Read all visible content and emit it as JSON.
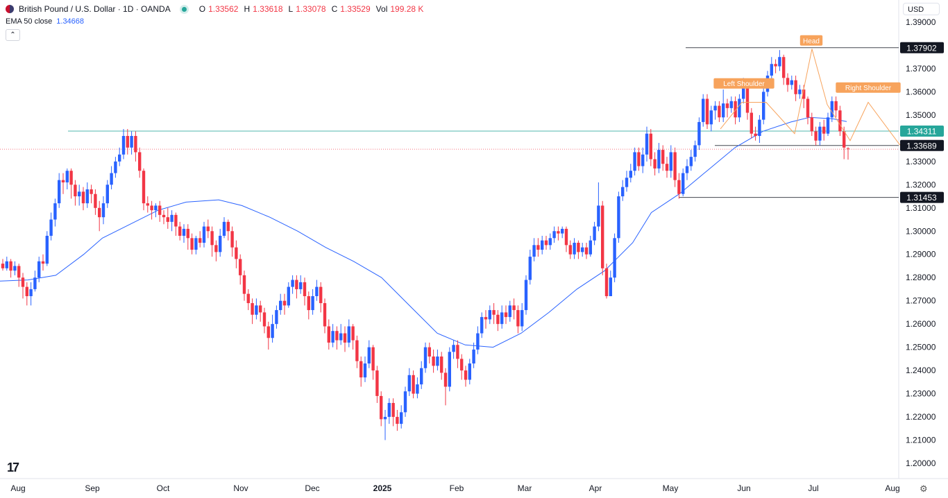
{
  "header": {
    "symbol": "British Pound / U.S. Dollar · 1D · OANDA",
    "open_label": "O",
    "open": "1.33562",
    "high_label": "H",
    "high": "1.33618",
    "low_label": "L",
    "low": "1.33078",
    "close_label": "C",
    "close": "1.33529",
    "vol_label": "Vol",
    "vol": "199.28 K"
  },
  "indicator": {
    "label": "EMA 50 close",
    "value": "1.34668",
    "color": "#2962ff"
  },
  "currency": "USD",
  "colors": {
    "up": "#2962ff",
    "down": "#f23645",
    "ema": "#2962ff",
    "support": "#26a69a",
    "pattern": "#f7a35c",
    "level": "#131722"
  },
  "chart_data": {
    "type": "candlestick",
    "y_range": [
      1.195,
      1.393
    ],
    "y_ticks": [
      "1.39000",
      "1.37000",
      "1.36000",
      "1.35000",
      "1.33000",
      "1.32000",
      "1.31000",
      "1.30000",
      "1.29000",
      "1.28000",
      "1.27000",
      "1.26000",
      "1.25000",
      "1.24000",
      "1.23000",
      "1.22000",
      "1.21000",
      "1.20000"
    ],
    "x_labels": [
      "Aug",
      "Sep",
      "Oct",
      "Nov",
      "Dec",
      "2025",
      "Feb",
      "Mar",
      "Apr",
      "May",
      "Jun",
      "Jul",
      "Aug"
    ],
    "price_tags": [
      {
        "label": "1.37902",
        "style": "level"
      },
      {
        "label": "1.34311",
        "style": "support"
      },
      {
        "label": "1.33689",
        "style": "level"
      },
      {
        "label": "1.31453",
        "style": "level"
      }
    ],
    "annotations": [
      "Left Shoulder",
      "Head",
      "Right Shoulder"
    ],
    "ema_label": "EMA 50 close",
    "ema_points": [
      [
        0,
        1.2785
      ],
      [
        0.03,
        1.279
      ],
      [
        0.06,
        1.281
      ],
      [
        0.09,
        1.29
      ],
      [
        0.11,
        1.297
      ],
      [
        0.14,
        1.303
      ],
      [
        0.17,
        1.309
      ],
      [
        0.2,
        1.3125
      ],
      [
        0.235,
        1.3135
      ],
      [
        0.26,
        1.311
      ],
      [
        0.29,
        1.306
      ],
      [
        0.32,
        1.3
      ],
      [
        0.35,
        1.293
      ],
      [
        0.38,
        1.287
      ],
      [
        0.41,
        1.28
      ],
      [
        0.44,
        1.268
      ],
      [
        0.47,
        1.256
      ],
      [
        0.5,
        1.251
      ],
      [
        0.53,
        1.25
      ],
      [
        0.56,
        1.256
      ],
      [
        0.59,
        1.265
      ],
      [
        0.62,
        1.275
      ],
      [
        0.65,
        1.283
      ],
      [
        0.68,
        1.295
      ],
      [
        0.7,
        1.308
      ],
      [
        0.73,
        1.316
      ],
      [
        0.76,
        1.326
      ],
      [
        0.79,
        1.336
      ],
      [
        0.82,
        1.343
      ],
      [
        0.85,
        1.347
      ],
      [
        0.87,
        1.349
      ],
      [
        0.895,
        1.3484
      ],
      [
        0.91,
        1.3472
      ]
    ],
    "candles": [
      [
        1.286,
        1.284,
        1.288,
        1.283
      ],
      [
        1.284,
        1.287,
        1.289,
        1.283
      ],
      [
        1.287,
        1.283,
        1.288,
        1.28
      ],
      [
        1.283,
        1.285,
        1.287,
        1.281
      ],
      [
        1.285,
        1.28,
        1.286,
        1.276
      ],
      [
        1.28,
        1.276,
        1.282,
        1.271
      ],
      [
        1.276,
        1.272,
        1.278,
        1.268
      ],
      [
        1.272,
        1.275,
        1.278,
        1.268
      ],
      [
        1.275,
        1.28,
        1.283,
        1.274
      ],
      [
        1.28,
        1.287,
        1.289,
        1.278
      ],
      [
        1.287,
        1.286,
        1.29,
        1.283
      ],
      [
        1.286,
        1.298,
        1.3,
        1.285
      ],
      [
        1.298,
        1.305,
        1.308,
        1.296
      ],
      [
        1.305,
        1.312,
        1.314,
        1.302
      ],
      [
        1.312,
        1.322,
        1.325,
        1.31
      ],
      [
        1.322,
        1.321,
        1.325,
        1.316
      ],
      [
        1.321,
        1.326,
        1.327,
        1.318
      ],
      [
        1.326,
        1.32,
        1.327,
        1.314
      ],
      [
        1.32,
        1.315,
        1.322,
        1.311
      ],
      [
        1.315,
        1.317,
        1.32,
        1.311
      ],
      [
        1.317,
        1.312,
        1.319,
        1.309
      ],
      [
        1.312,
        1.318,
        1.321,
        1.31
      ],
      [
        1.318,
        1.316,
        1.32,
        1.312
      ],
      [
        1.316,
        1.31,
        1.318,
        1.307
      ],
      [
        1.31,
        1.306,
        1.313,
        1.3
      ],
      [
        1.306,
        1.312,
        1.315,
        1.303
      ],
      [
        1.312,
        1.32,
        1.322,
        1.31
      ],
      [
        1.32,
        1.325,
        1.328,
        1.318
      ],
      [
        1.325,
        1.33,
        1.332,
        1.323
      ],
      [
        1.33,
        1.333,
        1.336,
        1.328
      ],
      [
        1.333,
        1.341,
        1.344,
        1.331
      ],
      [
        1.341,
        1.336,
        1.344,
        1.333
      ],
      [
        1.336,
        1.341,
        1.343,
        1.333
      ],
      [
        1.341,
        1.334,
        1.343,
        1.33
      ],
      [
        1.334,
        1.326,
        1.336,
        1.323
      ],
      [
        1.326,
        1.312,
        1.327,
        1.309
      ],
      [
        1.312,
        1.311,
        1.315,
        1.308
      ],
      [
        1.311,
        1.309,
        1.313,
        1.305
      ],
      [
        1.309,
        1.311,
        1.312,
        1.306
      ],
      [
        1.311,
        1.307,
        1.313,
        1.304
      ],
      [
        1.307,
        1.306,
        1.309,
        1.303
      ],
      [
        1.306,
        1.304,
        1.31,
        1.301
      ],
      [
        1.304,
        1.307,
        1.309,
        1.3
      ],
      [
        1.307,
        1.302,
        1.308,
        1.298
      ],
      [
        1.302,
        1.298,
        1.304,
        1.296
      ],
      [
        1.298,
        1.301,
        1.303,
        1.295
      ],
      [
        1.301,
        1.297,
        1.303,
        1.292
      ],
      [
        1.297,
        1.292,
        1.299,
        1.29
      ],
      [
        1.292,
        1.297,
        1.298,
        1.29
      ],
      [
        1.297,
        1.295,
        1.3,
        1.293
      ],
      [
        1.295,
        1.302,
        1.304,
        1.293
      ],
      [
        1.302,
        1.3,
        1.305,
        1.297
      ],
      [
        1.3,
        1.294,
        1.302,
        1.289
      ],
      [
        1.294,
        1.291,
        1.296,
        1.287
      ],
      [
        1.291,
        1.298,
        1.301,
        1.289
      ],
      [
        1.298,
        1.304,
        1.306,
        1.297
      ],
      [
        1.304,
        1.3,
        1.305,
        1.296
      ],
      [
        1.3,
        1.293,
        1.302,
        1.289
      ],
      [
        1.293,
        1.288,
        1.296,
        1.284
      ],
      [
        1.288,
        1.281,
        1.29,
        1.277
      ],
      [
        1.281,
        1.273,
        1.283,
        1.27
      ],
      [
        1.273,
        1.269,
        1.275,
        1.266
      ],
      [
        1.269,
        1.264,
        1.271,
        1.26
      ],
      [
        1.264,
        1.268,
        1.271,
        1.262
      ],
      [
        1.268,
        1.265,
        1.27,
        1.261
      ],
      [
        1.265,
        1.259,
        1.267,
        1.256
      ],
      [
        1.259,
        1.254,
        1.261,
        1.249
      ],
      [
        1.254,
        1.26,
        1.264,
        1.252
      ],
      [
        1.26,
        1.266,
        1.268,
        1.258
      ],
      [
        1.266,
        1.27,
        1.273,
        1.264
      ],
      [
        1.27,
        1.268,
        1.273,
        1.264
      ],
      [
        1.268,
        1.276,
        1.278,
        1.267
      ],
      [
        1.276,
        1.279,
        1.281,
        1.273
      ],
      [
        1.279,
        1.275,
        1.281,
        1.271
      ],
      [
        1.275,
        1.278,
        1.281,
        1.273
      ],
      [
        1.278,
        1.272,
        1.28,
        1.268
      ],
      [
        1.272,
        1.266,
        1.274,
        1.262
      ],
      [
        1.266,
        1.272,
        1.275,
        1.264
      ],
      [
        1.272,
        1.276,
        1.279,
        1.27
      ],
      [
        1.276,
        1.269,
        1.278,
        1.265
      ],
      [
        1.269,
        1.259,
        1.271,
        1.256
      ],
      [
        1.259,
        1.252,
        1.262,
        1.249
      ],
      [
        1.252,
        1.257,
        1.26,
        1.25
      ],
      [
        1.257,
        1.253,
        1.259,
        1.249
      ],
      [
        1.253,
        1.256,
        1.26,
        1.251
      ],
      [
        1.256,
        1.252,
        1.259,
        1.248
      ],
      [
        1.252,
        1.259,
        1.262,
        1.25
      ],
      [
        1.259,
        1.253,
        1.26,
        1.249
      ],
      [
        1.253,
        1.244,
        1.255,
        1.241
      ],
      [
        1.244,
        1.237,
        1.246,
        1.233
      ],
      [
        1.237,
        1.243,
        1.246,
        1.235
      ],
      [
        1.243,
        1.25,
        1.253,
        1.241
      ],
      [
        1.25,
        1.24,
        1.251,
        1.236
      ],
      [
        1.24,
        1.229,
        1.242,
        1.226
      ],
      [
        1.229,
        1.219,
        1.231,
        1.216
      ],
      [
        1.219,
        1.22,
        1.223,
        1.21
      ],
      [
        1.22,
        1.226,
        1.228,
        1.217
      ],
      [
        1.226,
        1.22,
        1.228,
        1.216
      ],
      [
        1.22,
        1.217,
        1.223,
        1.214
      ],
      [
        1.217,
        1.222,
        1.225,
        1.215
      ],
      [
        1.222,
        1.231,
        1.233,
        1.22
      ],
      [
        1.231,
        1.238,
        1.241,
        1.229
      ],
      [
        1.238,
        1.23,
        1.24,
        1.228
      ],
      [
        1.23,
        1.234,
        1.237,
        1.228
      ],
      [
        1.234,
        1.241,
        1.244,
        1.232
      ],
      [
        1.241,
        1.25,
        1.252,
        1.239
      ],
      [
        1.25,
        1.246,
        1.252,
        1.243
      ],
      [
        1.246,
        1.242,
        1.249,
        1.239
      ],
      [
        1.242,
        1.246,
        1.249,
        1.24
      ],
      [
        1.246,
        1.239,
        1.248,
        1.236
      ],
      [
        1.239,
        1.233,
        1.241,
        1.225
      ],
      [
        1.233,
        1.248,
        1.25,
        1.231
      ],
      [
        1.248,
        1.251,
        1.253,
        1.245
      ],
      [
        1.251,
        1.245,
        1.253,
        1.241
      ],
      [
        1.245,
        1.24,
        1.247,
        1.236
      ],
      [
        1.24,
        1.236,
        1.242,
        1.233
      ],
      [
        1.236,
        1.243,
        1.245,
        1.234
      ],
      [
        1.243,
        1.249,
        1.252,
        1.241
      ],
      [
        1.249,
        1.256,
        1.259,
        1.247
      ],
      [
        1.256,
        1.263,
        1.265,
        1.254
      ],
      [
        1.263,
        1.262,
        1.266,
        1.258
      ],
      [
        1.262,
        1.266,
        1.268,
        1.26
      ],
      [
        1.266,
        1.264,
        1.269,
        1.26
      ],
      [
        1.264,
        1.26,
        1.266,
        1.257
      ],
      [
        1.26,
        1.265,
        1.268,
        1.258
      ],
      [
        1.265,
        1.263,
        1.268,
        1.26
      ],
      [
        1.263,
        1.268,
        1.27,
        1.261
      ],
      [
        1.268,
        1.266,
        1.271,
        1.262
      ],
      [
        1.266,
        1.259,
        1.268,
        1.256
      ],
      [
        1.259,
        1.266,
        1.269,
        1.257
      ],
      [
        1.266,
        1.279,
        1.281,
        1.264
      ],
      [
        1.279,
        1.289,
        1.292,
        1.277
      ],
      [
        1.289,
        1.294,
        1.297,
        1.287
      ],
      [
        1.294,
        1.292,
        1.297,
        1.289
      ],
      [
        1.292,
        1.296,
        1.298,
        1.29
      ],
      [
        1.296,
        1.294,
        1.298,
        1.292
      ],
      [
        1.294,
        1.297,
        1.299,
        1.292
      ],
      [
        1.297,
        1.3,
        1.302,
        1.295
      ],
      [
        1.3,
        1.299,
        1.302,
        1.296
      ],
      [
        1.299,
        1.301,
        1.302,
        1.297
      ],
      [
        1.301,
        1.294,
        1.302,
        1.291
      ],
      [
        1.294,
        1.29,
        1.296,
        1.288
      ],
      [
        1.29,
        1.295,
        1.297,
        1.288
      ],
      [
        1.295,
        1.291,
        1.296,
        1.288
      ],
      [
        1.291,
        1.293,
        1.295,
        1.289
      ],
      [
        1.293,
        1.29,
        1.295,
        1.288
      ],
      [
        1.29,
        1.296,
        1.298,
        1.289
      ],
      [
        1.296,
        1.302,
        1.304,
        1.294
      ],
      [
        1.302,
        1.311,
        1.321,
        1.3
      ],
      [
        1.311,
        1.284,
        1.313,
        1.281
      ],
      [
        1.284,
        1.272,
        1.286,
        1.271
      ],
      [
        1.272,
        1.28,
        1.283,
        1.274
      ],
      [
        1.28,
        1.297,
        1.299,
        1.278
      ],
      [
        1.297,
        1.315,
        1.317,
        1.295
      ],
      [
        1.315,
        1.319,
        1.322,
        1.313
      ],
      [
        1.319,
        1.323,
        1.326,
        1.317
      ],
      [
        1.323,
        1.326,
        1.329,
        1.321
      ],
      [
        1.326,
        1.334,
        1.336,
        1.324
      ],
      [
        1.334,
        1.328,
        1.336,
        1.326
      ],
      [
        1.328,
        1.333,
        1.336,
        1.325
      ],
      [
        1.333,
        1.342,
        1.345,
        1.33
      ],
      [
        1.342,
        1.331,
        1.344,
        1.328
      ],
      [
        1.331,
        1.327,
        1.334,
        1.324
      ],
      [
        1.327,
        1.335,
        1.338,
        1.325
      ],
      [
        1.335,
        1.329,
        1.337,
        1.326
      ],
      [
        1.329,
        1.326,
        1.332,
        1.323
      ],
      [
        1.326,
        1.334,
        1.337,
        1.323
      ],
      [
        1.334,
        1.322,
        1.336,
        1.319
      ],
      [
        1.322,
        1.316,
        1.325,
        1.314
      ],
      [
        1.316,
        1.325,
        1.327,
        1.315
      ],
      [
        1.325,
        1.328,
        1.331,
        1.322
      ],
      [
        1.328,
        1.332,
        1.335,
        1.326
      ],
      [
        1.332,
        1.337,
        1.339,
        1.33
      ],
      [
        1.337,
        1.347,
        1.349,
        1.335
      ],
      [
        1.347,
        1.357,
        1.359,
        1.345
      ],
      [
        1.357,
        1.346,
        1.359,
        1.344
      ],
      [
        1.346,
        1.352,
        1.354,
        1.343
      ],
      [
        1.352,
        1.354,
        1.356,
        1.348
      ],
      [
        1.354,
        1.349,
        1.356,
        1.347
      ],
      [
        1.349,
        1.355,
        1.361,
        1.347
      ],
      [
        1.355,
        1.353,
        1.357,
        1.349
      ],
      [
        1.353,
        1.356,
        1.358,
        1.351
      ],
      [
        1.356,
        1.349,
        1.358,
        1.346
      ],
      [
        1.349,
        1.357,
        1.359,
        1.347
      ],
      [
        1.357,
        1.364,
        1.366,
        1.355
      ],
      [
        1.364,
        1.351,
        1.365,
        1.348
      ],
      [
        1.351,
        1.342,
        1.353,
        1.34
      ],
      [
        1.342,
        1.341,
        1.345,
        1.339
      ],
      [
        1.341,
        1.348,
        1.35,
        1.338
      ],
      [
        1.348,
        1.36,
        1.362,
        1.346
      ],
      [
        1.36,
        1.367,
        1.369,
        1.358
      ],
      [
        1.367,
        1.372,
        1.375,
        1.365
      ],
      [
        1.372,
        1.371,
        1.374,
        1.368
      ],
      [
        1.371,
        1.375,
        1.378,
        1.369
      ],
      [
        1.375,
        1.366,
        1.376,
        1.363
      ],
      [
        1.366,
        1.363,
        1.368,
        1.36
      ],
      [
        1.363,
        1.365,
        1.367,
        1.361
      ],
      [
        1.365,
        1.359,
        1.367,
        1.356
      ],
      [
        1.359,
        1.361,
        1.363,
        1.357
      ],
      [
        1.361,
        1.357,
        1.363,
        1.353
      ],
      [
        1.357,
        1.349,
        1.358,
        1.346
      ],
      [
        1.349,
        1.343,
        1.351,
        1.341
      ],
      [
        1.343,
        1.339,
        1.345,
        1.337
      ],
      [
        1.339,
        1.345,
        1.347,
        1.337
      ],
      [
        1.345,
        1.342,
        1.348,
        1.339
      ],
      [
        1.342,
        1.349,
        1.351,
        1.341
      ],
      [
        1.349,
        1.356,
        1.358,
        1.347
      ],
      [
        1.356,
        1.352,
        1.358,
        1.349
      ],
      [
        1.352,
        1.343,
        1.354,
        1.341
      ],
      [
        1.343,
        1.336,
        1.345,
        1.331
      ],
      [
        1.3356,
        1.3353,
        1.3362,
        1.3308
      ]
    ]
  }
}
